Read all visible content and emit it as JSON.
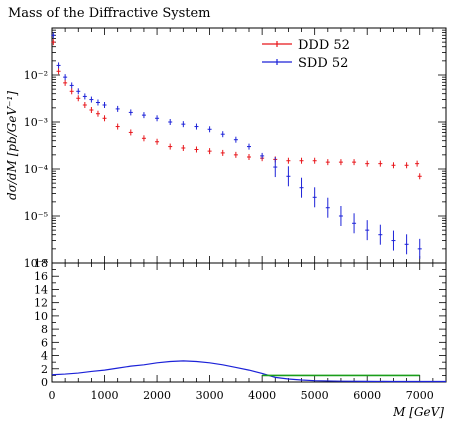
{
  "chart_data": [
    {
      "type": "scatter",
      "title": "Mass of the Diffractive System",
      "xlabel": "",
      "ylabel": "dσ/dM [pb/GeV⁻¹]",
      "xlim": [
        0,
        7500
      ],
      "ylim": [
        1e-06,
        0.1
      ],
      "yscale": "log",
      "legend_position": "top-right",
      "ytick_labels": [
        "10⁻²",
        "10⁻³",
        "10⁻⁴",
        "10⁻⁵",
        "10⁻⁶"
      ],
      "series": [
        {
          "name": "DDD 52",
          "color": "#e8161b",
          "x": [
            25,
            125,
            250,
            375,
            500,
            625,
            750,
            875,
            1000,
            1250,
            1500,
            1750,
            2000,
            2250,
            2500,
            2750,
            3000,
            3250,
            3500,
            3750,
            4000,
            4250,
            4500,
            4750,
            5000,
            5250,
            5500,
            5750,
            6000,
            6250,
            6500,
            6750,
            6950,
            7000
          ],
          "y": [
            0.05,
            0.012,
            0.0068,
            0.0045,
            0.0032,
            0.0023,
            0.0018,
            0.0015,
            0.0012,
            0.0008,
            0.0006,
            0.00045,
            0.00038,
            0.0003,
            0.00028,
            0.00026,
            0.00024,
            0.00022,
            0.0002,
            0.00018,
            0.00017,
            0.00016,
            0.00015,
            0.00015,
            0.00015,
            0.00014,
            0.00014,
            0.00014,
            0.00013,
            0.00013,
            0.00012,
            0.00012,
            0.00013,
            7e-05
          ]
        },
        {
          "name": "SDD 52",
          "color": "#1c22d8",
          "x": [
            25,
            125,
            250,
            375,
            500,
            625,
            750,
            875,
            1000,
            1250,
            1500,
            1750,
            2000,
            2250,
            2500,
            2750,
            3000,
            3250,
            3500,
            3750,
            4000,
            4250,
            4500,
            4750,
            5000,
            5250,
            5500,
            5750,
            6000,
            6250,
            6500,
            6750,
            7000
          ],
          "y": [
            0.07,
            0.016,
            0.009,
            0.006,
            0.0045,
            0.0035,
            0.003,
            0.0026,
            0.0023,
            0.0019,
            0.0016,
            0.0014,
            0.0012,
            0.001,
            0.0009,
            0.0008,
            0.0007,
            0.00055,
            0.00042,
            0.0003,
            0.00019,
            0.00011,
            7e-05,
            4e-05,
            2.5e-05,
            1.5e-05,
            1e-05,
            7e-06,
            5e-06,
            4e-06,
            3e-06,
            2.5e-06,
            2e-06
          ]
        }
      ]
    },
    {
      "type": "line",
      "xlabel": "M [GeV]",
      "ylabel": "",
      "xlim": [
        0,
        7500
      ],
      "ylim": [
        0,
        18
      ],
      "xtick_labels": [
        "0",
        "1000",
        "2000",
        "3000",
        "4000",
        "5000",
        "6000",
        "7000"
      ],
      "ytick_labels": [
        "0",
        "2",
        "4",
        "6",
        "8",
        "10",
        "12",
        "14",
        "16",
        "18"
      ],
      "series": [
        {
          "color": "#1c22d8",
          "x": [
            0,
            250,
            500,
            750,
            1000,
            1250,
            1500,
            1750,
            2000,
            2250,
            2500,
            2750,
            3000,
            3250,
            3500,
            3750,
            4000,
            4250,
            4500,
            4750,
            5000,
            5500,
            6000,
            6500,
            7000,
            7500
          ],
          "y": [
            1.1,
            1.2,
            1.35,
            1.6,
            1.8,
            2.1,
            2.4,
            2.6,
            2.9,
            3.1,
            3.2,
            3.1,
            2.9,
            2.6,
            2.2,
            1.8,
            1.3,
            0.7,
            0.45,
            0.3,
            0.2,
            0.12,
            0.1,
            0.08,
            0.07,
            0.07
          ]
        },
        {
          "color": "#1a9e1a",
          "x": [
            4000,
            7000
          ],
          "y": [
            1,
            1
          ]
        }
      ]
    }
  ]
}
